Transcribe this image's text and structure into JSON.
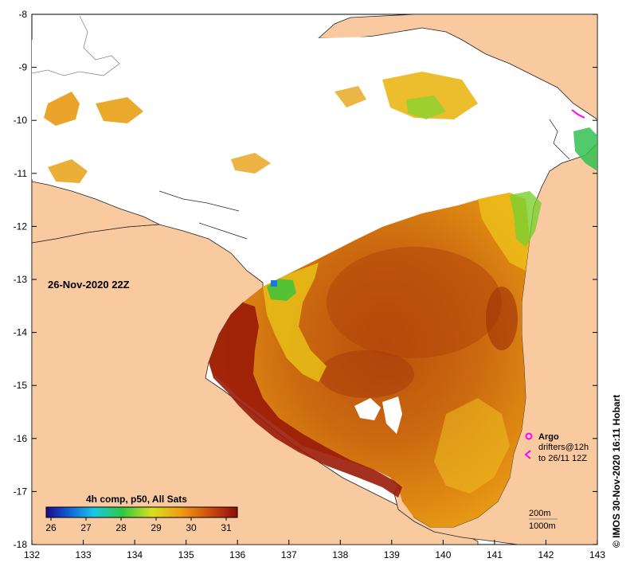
{
  "map": {
    "date_label": "26-Nov-2020 22Z",
    "x_ticks": [
      "132",
      "133",
      "134",
      "135",
      "136",
      "137",
      "138",
      "139",
      "140",
      "141",
      "142",
      "143"
    ],
    "y_ticks": [
      "-8",
      "-9",
      "-10",
      "-11",
      "-12",
      "-13",
      "-14",
      "-15",
      "-16",
      "-17",
      "-18"
    ],
    "colorbar": {
      "title": "4h comp, p50, All Sats",
      "ticks": [
        "26",
        "27",
        "28",
        "29",
        "30",
        "31"
      ]
    },
    "legend": {
      "argo": "Argo",
      "drifters": "drifters@12h",
      "drifters_to": "to 26/11 12Z",
      "depth_200": "200m",
      "depth_1000": "1000m"
    },
    "credit": "© IMOS 30-Nov-2020 16:11 Hobart",
    "colors": {
      "land": "#f9c9a0",
      "cloud": "#ffffff",
      "sst_hot": "#9a1a08",
      "sst_warm": "#c85a0c",
      "sst_mid": "#e6960e",
      "sst_cool": "#f2d21a",
      "sst_green": "#3cc43c",
      "argo": "#ff00ff"
    }
  }
}
